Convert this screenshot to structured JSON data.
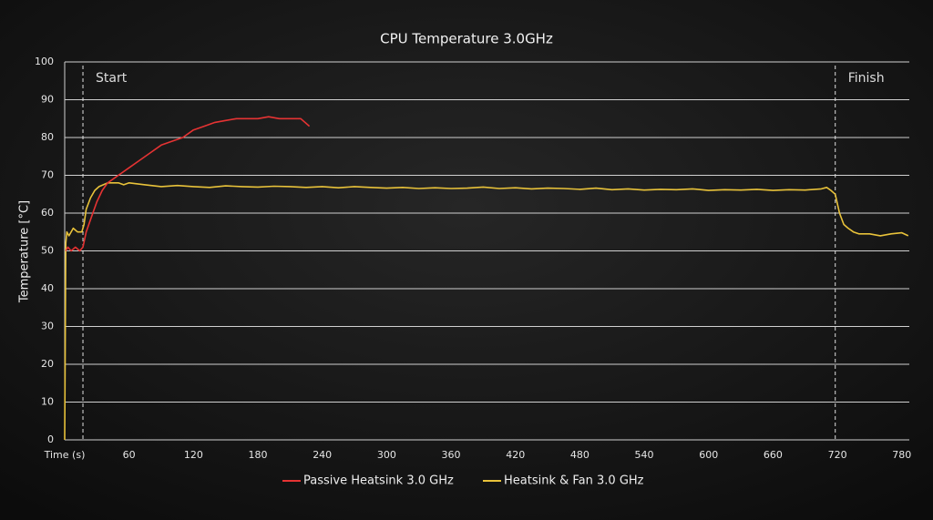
{
  "chart_data": {
    "type": "line",
    "title": "CPU Temperature 3.0GHz",
    "y_label": "Temperature [°C]",
    "xlim": [
      0,
      787
    ],
    "ylim": [
      0,
      100
    ],
    "xticks": [
      {
        "value": 0,
        "label": "Time (s)"
      },
      60,
      120,
      180,
      240,
      300,
      360,
      420,
      480,
      540,
      600,
      660,
      720,
      780
    ],
    "yticks": [
      0,
      10,
      20,
      30,
      40,
      50,
      60,
      70,
      80,
      90,
      100
    ],
    "grid": true,
    "legend": "bottom",
    "annotations": [
      {
        "label": "Start",
        "x": 17
      },
      {
        "label": "Finish",
        "x": 718
      }
    ],
    "series": [
      {
        "name": "Passive Heatsink 3.0 GHz",
        "color": "#e53333",
        "x": [
          1,
          3,
          6,
          10,
          14,
          17,
          20,
          25,
          30,
          35,
          40,
          50,
          60,
          70,
          80,
          90,
          100,
          110,
          120,
          130,
          140,
          150,
          160,
          170,
          180,
          190,
          200,
          210,
          220,
          228
        ],
        "values": [
          50,
          51,
          50,
          51,
          50,
          51,
          55,
          59,
          63,
          66,
          68,
          70,
          72,
          74,
          76,
          78,
          79,
          80,
          82,
          83,
          84,
          84.5,
          85,
          85,
          85,
          85.5,
          85,
          85,
          85,
          83
        ]
      },
      {
        "name": "Heatsink & Fan 3.0 GHz",
        "color": "#e8c23a",
        "x": [
          0,
          1,
          2,
          4,
          8,
          12,
          16,
          18,
          20,
          24,
          28,
          32,
          36,
          40,
          45,
          50,
          55,
          60,
          75,
          90,
          105,
          120,
          135,
          150,
          165,
          180,
          195,
          210,
          225,
          240,
          255,
          270,
          285,
          300,
          315,
          330,
          345,
          360,
          375,
          390,
          405,
          420,
          435,
          450,
          465,
          480,
          495,
          510,
          525,
          540,
          555,
          570,
          585,
          600,
          615,
          630,
          645,
          660,
          675,
          690,
          705,
          710,
          714,
          718,
          722,
          726,
          730,
          735,
          740,
          750,
          760,
          770,
          780,
          786
        ],
        "values": [
          0,
          52,
          55,
          54,
          56,
          55,
          55,
          57,
          61,
          64,
          66,
          67,
          67.5,
          68,
          68,
          68,
          67.5,
          68,
          67.5,
          67,
          67.3,
          67,
          66.8,
          67.2,
          67,
          66.9,
          67.1,
          67,
          66.8,
          67,
          66.7,
          67,
          66.8,
          66.6,
          66.8,
          66.5,
          66.7,
          66.5,
          66.6,
          66.9,
          66.5,
          66.7,
          66.4,
          66.6,
          66.5,
          66.3,
          66.6,
          66.2,
          66.4,
          66.1,
          66.3,
          66.2,
          66.4,
          66,
          66.2,
          66.1,
          66.3,
          66,
          66.2,
          66.1,
          66.4,
          66.8,
          66,
          65,
          60,
          57,
          56,
          55,
          54.5,
          54.5,
          54,
          54.5,
          54.8,
          54
        ]
      }
    ]
  }
}
